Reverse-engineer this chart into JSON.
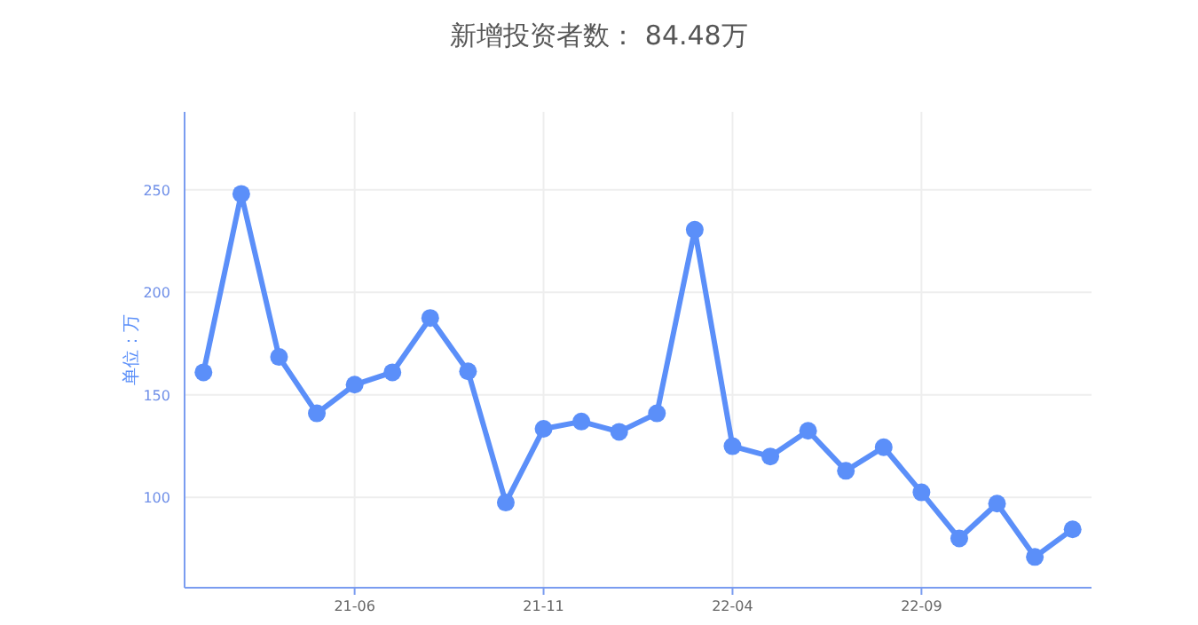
{
  "chart_data": {
    "type": "line",
    "title": "新增投资者数： 84.48万",
    "ylabel": "单位：万",
    "categories": [
      null,
      null,
      null,
      null,
      "21-06",
      null,
      null,
      null,
      null,
      "21-11",
      null,
      null,
      null,
      null,
      "22-04",
      null,
      null,
      null,
      null,
      "22-09",
      null,
      null,
      null,
      null
    ],
    "series": [
      {
        "color": "#5b8ff9",
        "values": [
          161,
          248,
          168.5,
          141,
          155,
          161,
          187.5,
          161.5,
          97.5,
          133.5,
          137,
          132,
          141,
          230.5,
          125,
          120,
          132.5,
          113,
          124.5,
          102.5,
          80,
          97,
          71,
          84.48
        ]
      }
    ],
    "ylim": [
      56,
      288
    ],
    "yticks": [
      100,
      150,
      200,
      250
    ],
    "grid": true,
    "marker": "circle",
    "line_style": "solid"
  }
}
